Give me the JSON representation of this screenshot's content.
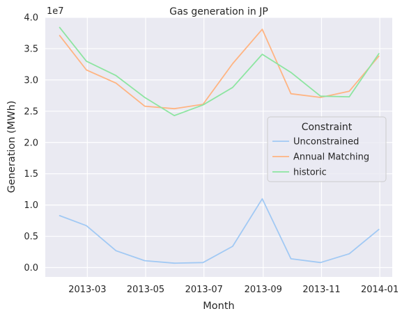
{
  "chart_data": {
    "type": "line",
    "title": "Gas generation in JP",
    "xlabel": "Month",
    "ylabel": "Generation (MWh)",
    "y_offset_label": "1e7",
    "y_scale": 10000000,
    "ylim": [
      -1500000,
      40000000
    ],
    "yticks": [
      0,
      5000000,
      10000000,
      15000000,
      20000000,
      25000000,
      30000000,
      35000000,
      40000000
    ],
    "ytick_labels": [
      "0.0",
      "0.5",
      "1.0",
      "1.5",
      "2.0",
      "2.5",
      "3.0",
      "3.5",
      "4.0"
    ],
    "xlim": [
      "2013-01-16",
      "2014-01-14"
    ],
    "xticks": [
      "2013-03-01",
      "2013-05-01",
      "2013-07-01",
      "2013-09-01",
      "2013-11-01",
      "2014-01-01"
    ],
    "xtick_labels": [
      "2013-03",
      "2013-05",
      "2013-07",
      "2013-09",
      "2013-11",
      "2014-01"
    ],
    "x": [
      "2013-01-31",
      "2013-02-28",
      "2013-03-31",
      "2013-04-30",
      "2013-05-31",
      "2013-06-30",
      "2013-07-31",
      "2013-08-31",
      "2013-09-30",
      "2013-10-31",
      "2013-11-30",
      "2013-12-31"
    ],
    "grid": true,
    "legend_title": "Constraint",
    "legend_position": "center-right",
    "series": [
      {
        "name": "Unconstrained",
        "color": "#a1c9f4",
        "values": [
          8300000,
          6700000,
          2700000,
          1100000,
          700000,
          800000,
          3400000,
          11000000,
          1400000,
          800000,
          2200000,
          6100000
        ]
      },
      {
        "name": "Annual Matching",
        "color": "#ffb482",
        "values": [
          37100000,
          31600000,
          29500000,
          25800000,
          25400000,
          26100000,
          32600000,
          38100000,
          27800000,
          27200000,
          28200000,
          33800000
        ]
      },
      {
        "name": "historic",
        "color": "#8de5a1",
        "values": [
          38400000,
          33000000,
          30700000,
          27200000,
          24300000,
          26000000,
          28800000,
          34100000,
          31200000,
          27400000,
          27300000,
          34200000
        ]
      }
    ]
  }
}
